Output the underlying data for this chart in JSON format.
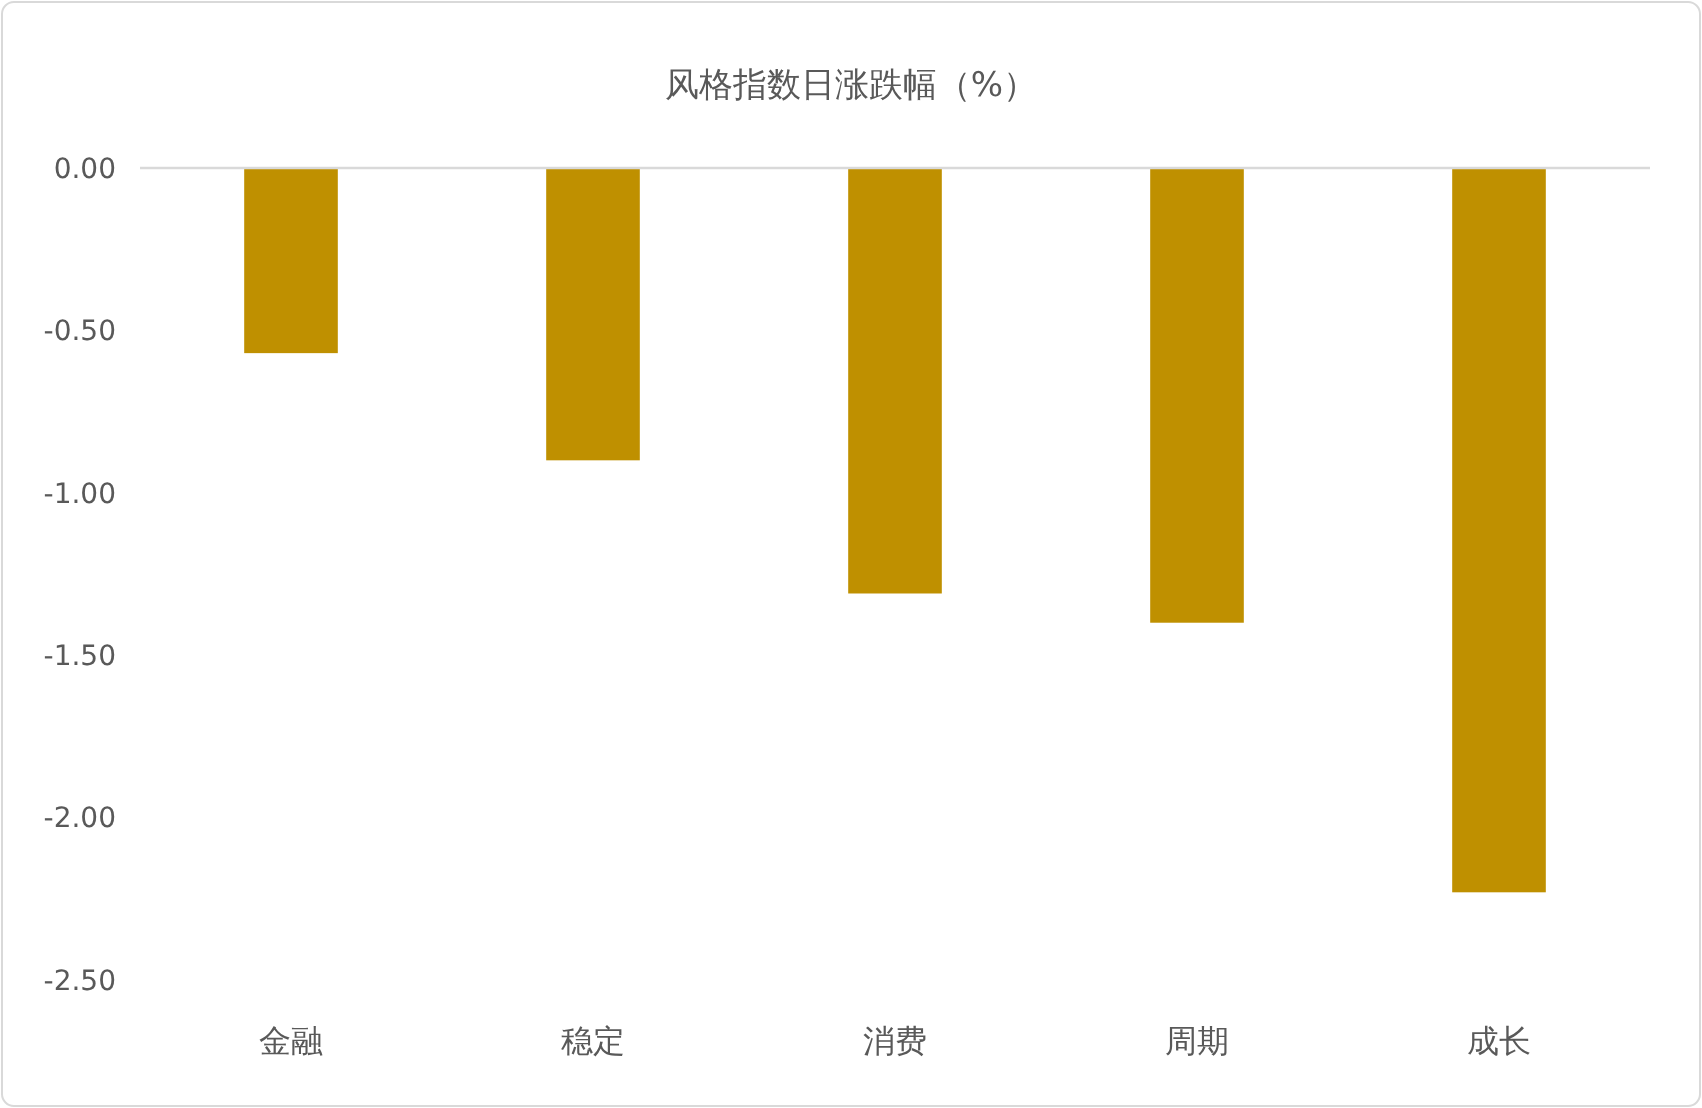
{
  "chart_data": {
    "type": "bar",
    "title": "风格指数日涨跌幅（%）",
    "categories": [
      "金融",
      "稳定",
      "消费",
      "周期",
      "成长"
    ],
    "values": [
      -0.57,
      -0.9,
      -1.31,
      -1.4,
      -2.23
    ],
    "color": "#bf9000",
    "ylim": [
      -2.5,
      0
    ],
    "yticks": [
      {
        "value": -2.5,
        "label": "-2.50"
      },
      {
        "value": -2,
        "label": "-2.00"
      },
      {
        "value": -1.5,
        "label": "-1.50"
      },
      {
        "value": -1,
        "label": "-1.00"
      },
      {
        "value": -0.5,
        "label": "-0.50"
      },
      {
        "value": 0,
        "label": "0.00"
      }
    ],
    "grid": false
  }
}
